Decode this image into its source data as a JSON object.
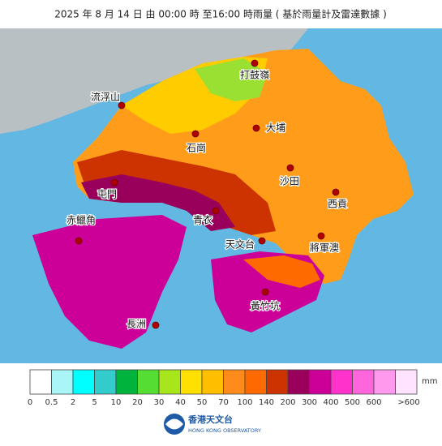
{
  "title": "2025 年  8 月 14 日  由 00:00  時 至16:00   時雨量 ( 基於雨量計及雷達數據 )",
  "places": [
    "打鼓嶺",
    "流浮山",
    "大埔",
    "石崗",
    "沙田",
    "屯門",
    "西貢",
    "青衣",
    "赤鱲角",
    "天文台",
    "將軍澳",
    "黃竹坑",
    "長洲"
  ],
  "legend": {
    "unit": "mm",
    "colors": [
      "#ffffff",
      "#aaf5f5",
      "#00ffff",
      "#33cccc",
      "#00b33c",
      "#55dd33",
      "#a6e61a",
      "#ffe000",
      "#ffbf00",
      "#ff8c1a",
      "#ff6a00",
      "#cc3300",
      "#99005c",
      "#cc0099",
      "#ff33cc",
      "#ff66dd",
      "#ff99ee",
      "#ffe3ff"
    ],
    "labels": [
      "0",
      "0.5",
      "2",
      "5",
      "10",
      "20",
      "30",
      "40",
      "50",
      "70",
      "100",
      "140",
      "200",
      "300",
      "400",
      "500",
      "600",
      ">600"
    ]
  },
  "logo": {
    "name": "香港天文台",
    "subtitle": "HONG KONG OBSERVATORY"
  }
}
